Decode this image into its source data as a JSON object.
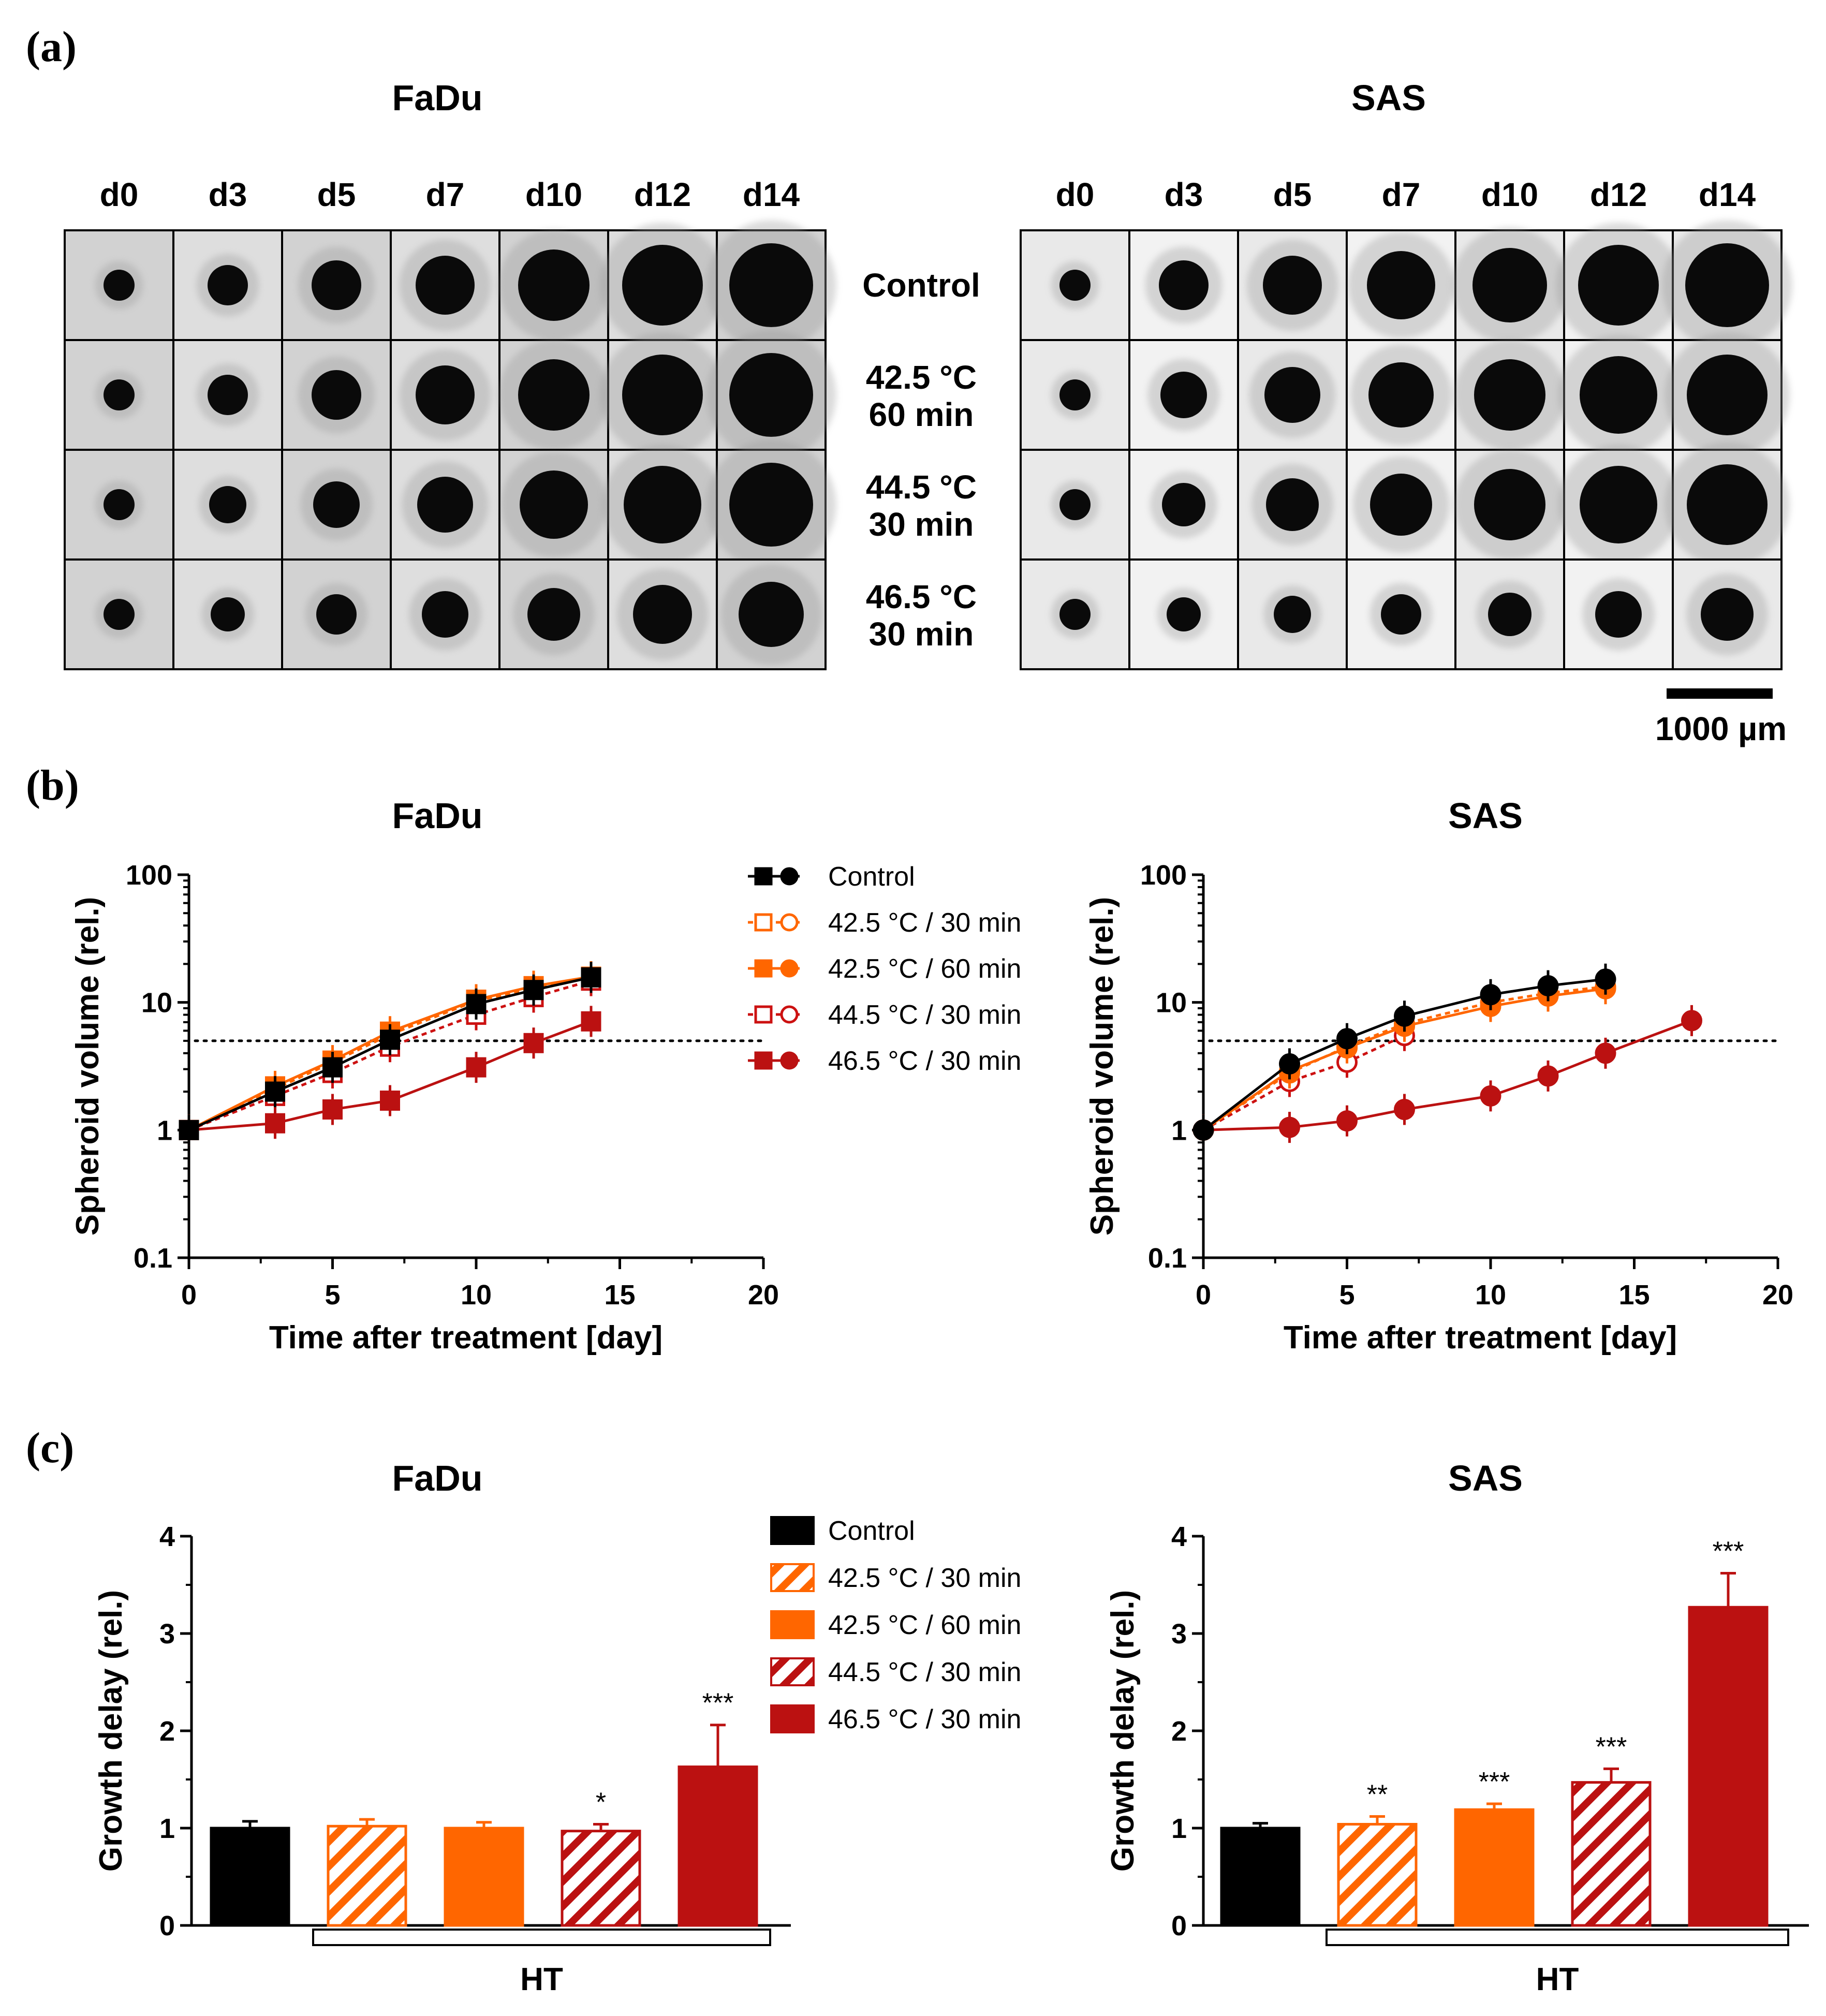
{
  "panels": {
    "a": "(a)",
    "b": "(b)",
    "c": "(c)"
  },
  "images": {
    "titles": [
      "FaDu",
      "SAS"
    ],
    "days": [
      "d0",
      "d3",
      "d5",
      "d7",
      "d10",
      "d12",
      "d14"
    ],
    "conditions": [
      {
        "line1": "Control",
        "line2": ""
      },
      {
        "line1": "42.5 °C",
        "line2": "60 min"
      },
      {
        "line1": "44.5 °C",
        "line2": "30 min"
      },
      {
        "line1": "46.5 °C",
        "line2": "30 min"
      }
    ],
    "relative_spheroid_size": {
      "FaDu": [
        [
          1.0,
          1.3,
          1.6,
          1.9,
          2.3,
          2.6,
          2.7
        ],
        [
          1.0,
          1.3,
          1.6,
          1.9,
          2.3,
          2.6,
          2.7
        ],
        [
          1.0,
          1.2,
          1.5,
          1.8,
          2.2,
          2.5,
          2.7
        ],
        [
          1.0,
          1.1,
          1.3,
          1.5,
          1.7,
          1.9,
          2.1
        ]
      ],
      "SAS": [
        [
          1.0,
          1.6,
          1.9,
          2.2,
          2.4,
          2.6,
          2.7
        ],
        [
          1.0,
          1.5,
          1.8,
          2.1,
          2.3,
          2.5,
          2.6
        ],
        [
          1.0,
          1.4,
          1.7,
          2.0,
          2.3,
          2.5,
          2.6
        ],
        [
          1.0,
          1.1,
          1.2,
          1.3,
          1.4,
          1.5,
          1.7
        ]
      ]
    },
    "scalebar_label": "1000 µm"
  },
  "colors": {
    "control": "#000000",
    "c425": "#FF6600",
    "c445": "#CC1111",
    "c465": "#BB1111"
  },
  "chart_data": [
    {
      "type": "line",
      "title": "FaDu",
      "xlabel": "Time after treatment [day]",
      "ylabel": "Spheroid volume (rel.)",
      "xlim": [
        0,
        20
      ],
      "ylim": [
        0.1,
        100
      ],
      "yscale": "log",
      "xticks": [
        "0",
        "5",
        "10",
        "15",
        "20"
      ],
      "yticks": [
        "0.1",
        "1",
        "10",
        "100"
      ],
      "threshold": 5,
      "series": [
        {
          "name": "Control",
          "x": [
            0,
            3,
            5,
            7,
            10,
            12,
            14
          ],
          "y": [
            1,
            2.0,
            3.1,
            5.1,
            9.7,
            12.5,
            15.7
          ]
        },
        {
          "name": "42.5 °C / 30 min",
          "x": [
            0,
            3,
            5,
            7,
            10,
            12,
            14
          ],
          "y": [
            1,
            2.1,
            3.4,
            5.6,
            10.3,
            12.8,
            15.8
          ]
        },
        {
          "name": "42.5 °C / 60 min",
          "x": [
            0,
            3,
            5,
            7,
            10,
            12,
            14
          ],
          "y": [
            1,
            2.2,
            3.5,
            5.9,
            10.5,
            13.4,
            15.9
          ]
        },
        {
          "name": "44.5 °C / 30 min",
          "x": [
            0,
            3,
            5,
            7,
            10,
            12,
            14
          ],
          "y": [
            1,
            1.85,
            2.8,
            4.5,
            8.0,
            11.0,
            14.8
          ]
        },
        {
          "name": "46.5 °C / 30 min",
          "x": [
            0,
            3,
            5,
            7,
            10,
            12,
            14
          ],
          "y": [
            1,
            1.13,
            1.45,
            1.7,
            3.1,
            4.8,
            7.1
          ]
        }
      ]
    },
    {
      "type": "line",
      "title": "SAS",
      "xlabel": "Time after treatment [day]",
      "ylabel": "Spheroid volume (rel.)",
      "xlim": [
        0,
        20
      ],
      "ylim": [
        0.1,
        100
      ],
      "yscale": "log",
      "xticks": [
        "0",
        "5",
        "10",
        "15",
        "20"
      ],
      "yticks": [
        "0.1",
        "1",
        "10",
        "100"
      ],
      "threshold": 5,
      "series": [
        {
          "name": "Control",
          "x": [
            0,
            3,
            5,
            7,
            10,
            12,
            14
          ],
          "y": [
            1,
            3.3,
            5.2,
            7.8,
            11.5,
            13.5,
            15.2
          ]
        },
        {
          "name": "42.5 °C / 30 min",
          "x": [
            0,
            3,
            5,
            7,
            10,
            12,
            14
          ],
          "y": [
            1,
            2.8,
            4.5,
            6.8,
            10.0,
            11.8,
            13.3
          ]
        },
        {
          "name": "42.5 °C / 60 min",
          "x": [
            0,
            3,
            5,
            7,
            10,
            12,
            14
          ],
          "y": [
            1,
            2.9,
            4.4,
            6.5,
            9.3,
            11.2,
            12.8
          ]
        },
        {
          "name": "44.5 °C / 30 min",
          "x": [
            0,
            3,
            5,
            7
          ],
          "y": [
            1,
            2.4,
            3.4,
            5.5
          ]
        },
        {
          "name": "46.5 °C / 30 min",
          "x": [
            0,
            3,
            5,
            7,
            10,
            12,
            14,
            17
          ],
          "y": [
            1,
            1.05,
            1.18,
            1.45,
            1.85,
            2.65,
            4.0,
            7.2
          ]
        }
      ]
    },
    {
      "type": "bar",
      "title": "FaDu",
      "ylabel": "Growth delay (rel.)",
      "ylim": [
        0,
        4
      ],
      "yticks": [
        "0",
        "1",
        "2",
        "3",
        "4"
      ],
      "categories": [
        "Control",
        "42.5 °C / 30 min",
        "42.5 °C / 60 min",
        "44.5 °C / 30 min",
        "46.5 °C / 30 min"
      ],
      "values": [
        1.0,
        1.02,
        1.0,
        0.97,
        1.63
      ],
      "errors": [
        0.07,
        0.07,
        0.06,
        0.07,
        0.43
      ],
      "significance": [
        "",
        "",
        "",
        "*",
        "***"
      ],
      "group_label": "HT"
    },
    {
      "type": "bar",
      "title": "SAS",
      "ylabel": "Growth delay (rel.)",
      "ylim": [
        0,
        4
      ],
      "yticks": [
        "0",
        "1",
        "2",
        "3",
        "4"
      ],
      "categories": [
        "Control",
        "42.5 °C / 30 min",
        "42.5 °C / 60 min",
        "44.5 °C / 30 min",
        "46.5 °C / 30 min"
      ],
      "values": [
        1.0,
        1.04,
        1.19,
        1.47,
        3.27
      ],
      "errors": [
        0.05,
        0.08,
        0.06,
        0.14,
        0.35
      ],
      "significance": [
        "",
        "**",
        "***",
        "***",
        "***"
      ],
      "group_label": "HT"
    }
  ],
  "legend": {
    "entries": [
      "Control",
      "42.5 °C / 30 min",
      "42.5 °C / 60 min",
      "44.5 °C / 30 min",
      "46.5 °C / 30 min"
    ]
  }
}
